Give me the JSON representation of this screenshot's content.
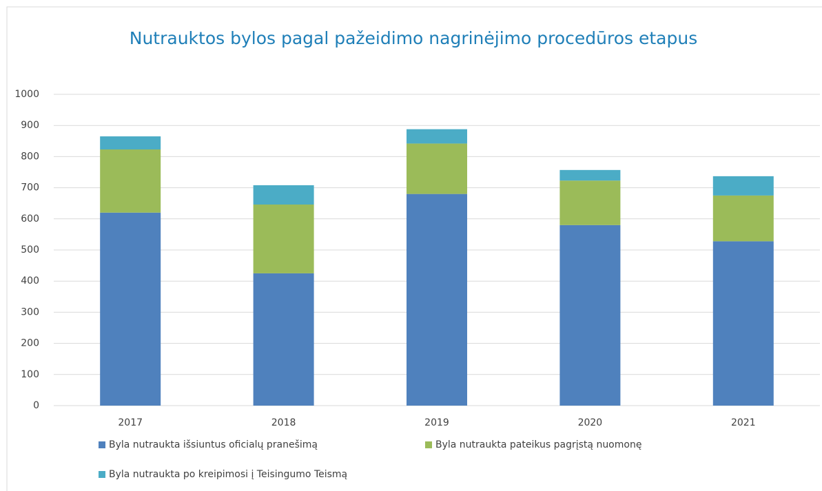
{
  "chart_data": {
    "type": "bar",
    "stacked": true,
    "title": "Nutrauktos bylos pagal pažeidimo nagrinėjimo procedūros etapus",
    "categories": [
      "2017",
      "2018",
      "2019",
      "2020",
      "2021"
    ],
    "series": [
      {
        "name": "Byla nutraukta išsiuntus oficialų pranešimą",
        "color": "#4f81bd",
        "values": [
          620,
          425,
          680,
          580,
          528
        ]
      },
      {
        "name": "Byla nutraukta pateikus pagrįstą nuomonę",
        "color": "#9bbb59",
        "values": [
          203,
          221,
          162,
          143,
          147
        ]
      },
      {
        "name": "Byla nutraukta po kreipimosi į Teisingumo Teismą",
        "color": "#4bacc6",
        "values": [
          42,
          62,
          46,
          34,
          62
        ]
      }
    ],
    "ylim": [
      0,
      1000
    ],
    "yticks": [
      0,
      100,
      200,
      300,
      400,
      500,
      600,
      700,
      800,
      900,
      1000
    ],
    "grid": true
  }
}
